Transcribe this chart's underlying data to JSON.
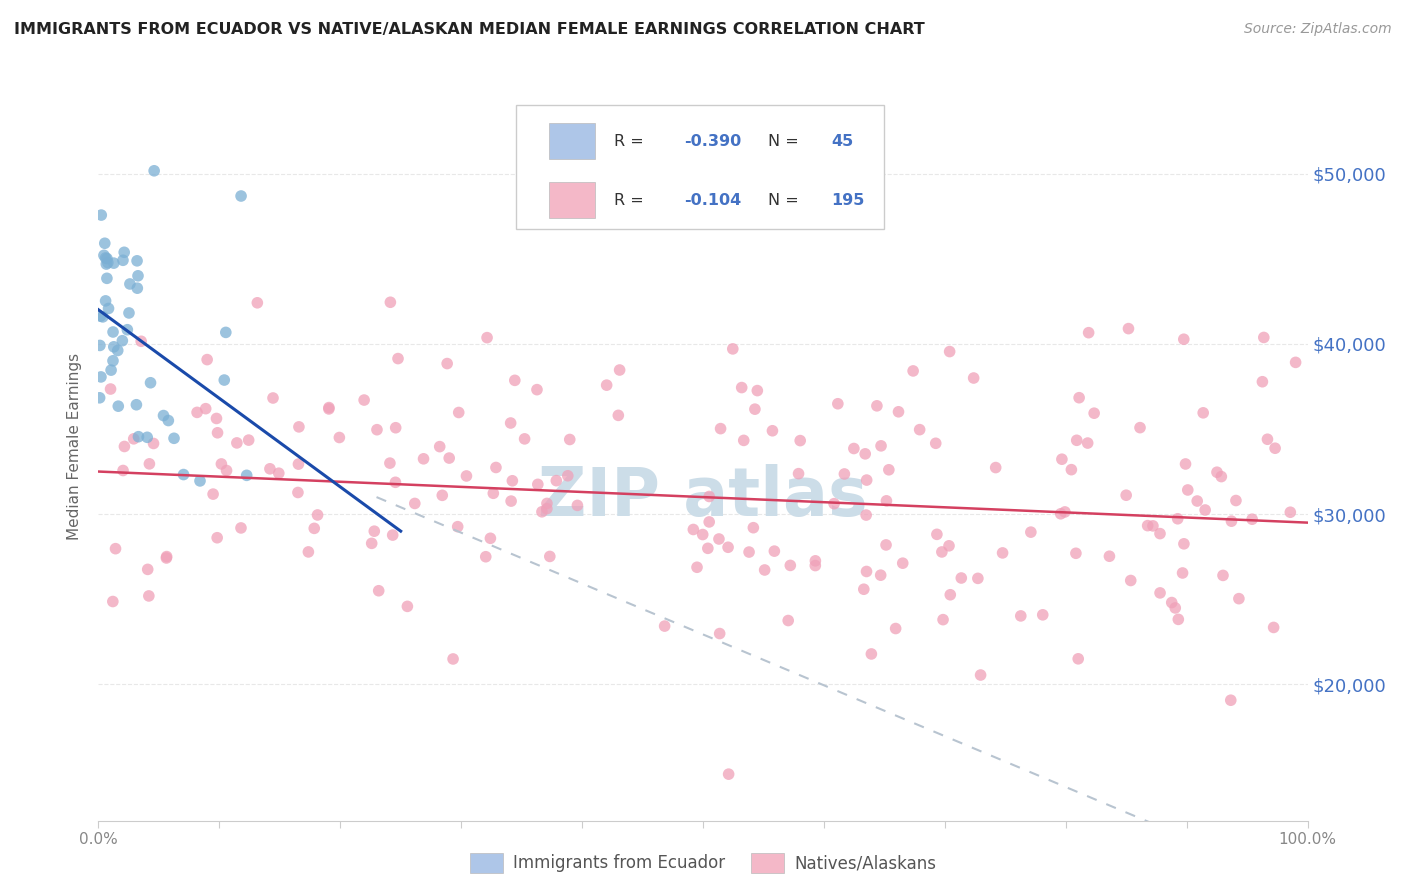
{
  "title": "IMMIGRANTS FROM ECUADOR VS NATIVE/ALASKAN MEDIAN FEMALE EARNINGS CORRELATION CHART",
  "source": "Source: ZipAtlas.com",
  "ylabel": "Median Female Earnings",
  "y_tick_values": [
    20000,
    30000,
    40000,
    50000
  ],
  "blue_scatter_color": "#7bafd4",
  "pink_scatter_color": "#f0a0b8",
  "blue_line_color": "#1a4aaa",
  "pink_line_color": "#d44060",
  "dashed_line_color": "#b8c4d0",
  "watermark_color": "#ccdde8",
  "background_color": "#ffffff",
  "grid_color": "#e8e8e8",
  "title_color": "#222222",
  "axis_label_color": "#666666",
  "right_label_color": "#4472c4",
  "tick_color": "#888888",
  "xlim": [
    0,
    100
  ],
  "ylim": [
    12000,
    56000
  ],
  "ecuador_line_x": [
    0,
    25
  ],
  "ecuador_line_y": [
    42000,
    29000
  ],
  "native_line_x": [
    0,
    100
  ],
  "native_line_y": [
    32500,
    29500
  ],
  "dashed_line_x": [
    23,
    100
  ],
  "dashed_line_y": [
    31000,
    8000
  ]
}
